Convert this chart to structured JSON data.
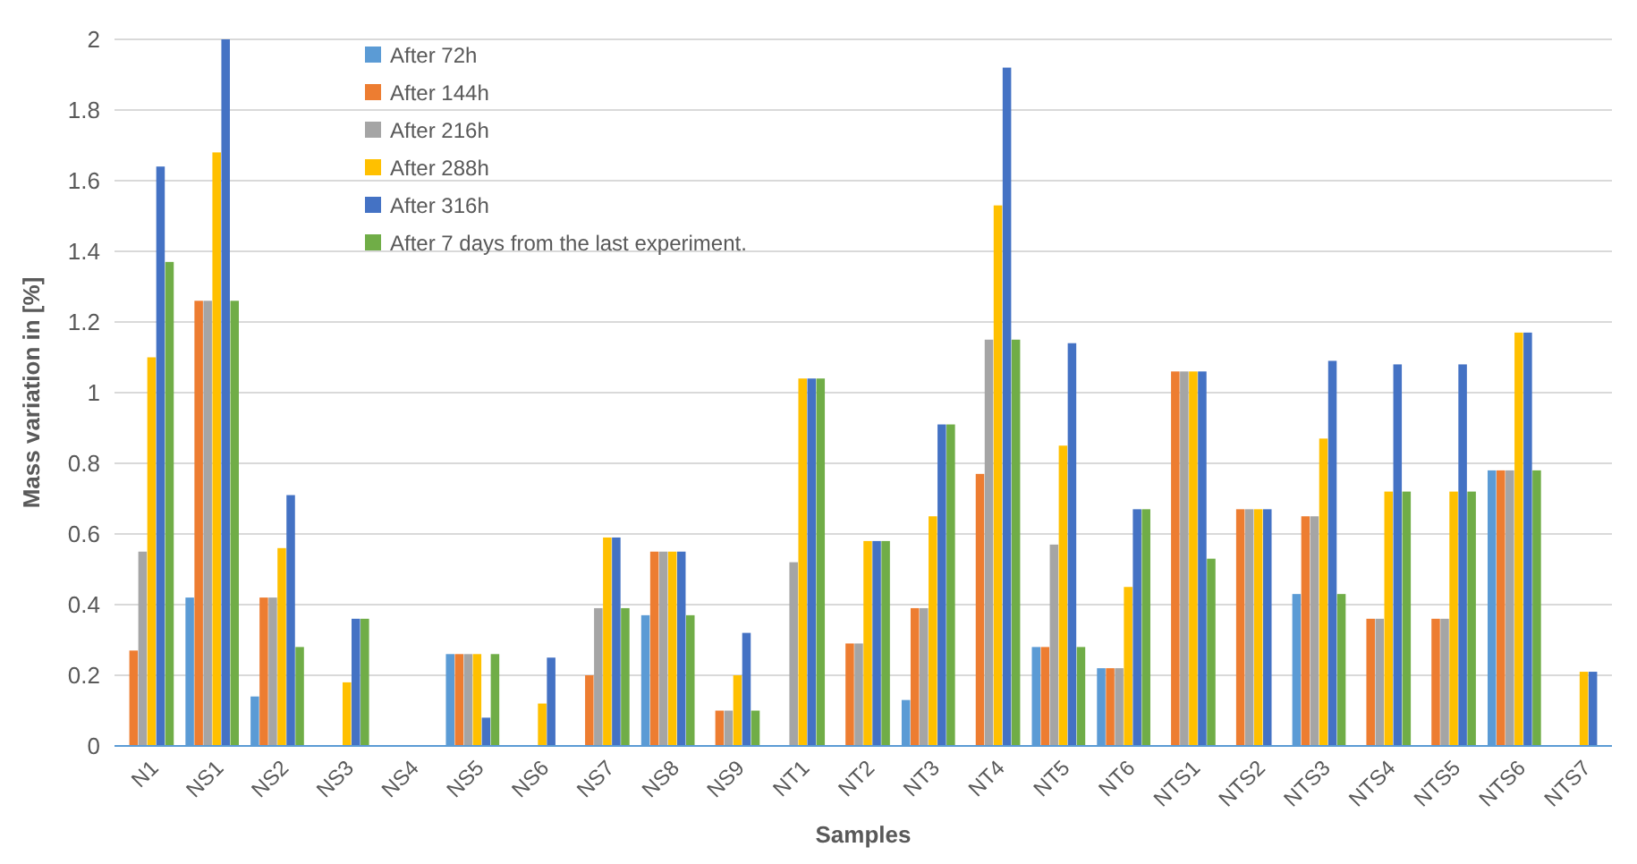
{
  "chart_data": {
    "type": "bar",
    "xlabel": "Samples",
    "ylabel": "Mass variation in [%]",
    "categories": [
      "N1",
      "NS1",
      "NS2",
      "NS3",
      "NS4",
      "NS5",
      "NS6",
      "NS7",
      "NS8",
      "NS9",
      "NT1",
      "NT2",
      "NT3",
      "NT4",
      "NT5",
      "NT6",
      "NTS1",
      "NTS2",
      "NTS3",
      "NTS4",
      "NTS5",
      "NTS6",
      "NTS7"
    ],
    "series": [
      {
        "name": "After 72h",
        "color": "#5b9bd5",
        "values": [
          0,
          0.42,
          0.14,
          0,
          0,
          0.26,
          0,
          0,
          0.37,
          0,
          0,
          0,
          0.13,
          0,
          0.28,
          0.22,
          0,
          0,
          0.43,
          0,
          0,
          0.78,
          0
        ]
      },
      {
        "name": "After 144h",
        "color": "#ed7d31",
        "values": [
          0.27,
          1.26,
          0.42,
          0,
          0,
          0.26,
          0,
          0.2,
          0.55,
          0.1,
          0,
          0.29,
          0.39,
          0.77,
          0.28,
          0.22,
          1.06,
          0.67,
          0.65,
          0.36,
          0.36,
          0.78,
          0
        ]
      },
      {
        "name": "After 216h",
        "color": "#a5a5a5",
        "values": [
          0.55,
          1.26,
          0.42,
          0,
          0,
          0.26,
          0,
          0.39,
          0.55,
          0.1,
          0.52,
          0.29,
          0.39,
          1.15,
          0.57,
          0.22,
          1.06,
          0.67,
          0.65,
          0.36,
          0.36,
          0.78,
          0
        ]
      },
      {
        "name": "After 288h",
        "color": "#ffc000",
        "values": [
          1.1,
          1.68,
          0.56,
          0.18,
          0,
          0.26,
          0.12,
          0.59,
          0.55,
          0.2,
          1.04,
          0.58,
          0.65,
          1.53,
          0.85,
          0.45,
          1.06,
          0.67,
          0.87,
          0.72,
          0.72,
          1.17,
          0.21
        ]
      },
      {
        "name": "After 316h",
        "color": "#4472c4",
        "values": [
          1.64,
          2,
          0.71,
          0.36,
          0,
          0.08,
          0.25,
          0.59,
          0.55,
          0.32,
          1.04,
          0.58,
          0.91,
          1.92,
          1.14,
          0.67,
          1.06,
          0.67,
          1.09,
          1.08,
          1.08,
          1.17,
          0.21
        ]
      },
      {
        "name": "After 7 days from the last experiment.",
        "color": "#70ad47",
        "values": [
          1.37,
          1.26,
          0.28,
          0.36,
          0,
          0.26,
          0,
          0.39,
          0.37,
          0.1,
          1.04,
          0.58,
          0.91,
          1.15,
          0.28,
          0.67,
          0.53,
          0,
          0.43,
          0.72,
          0.72,
          0.78,
          0
        ]
      }
    ],
    "ylim": [
      0,
      2
    ],
    "yticks": [
      0,
      0.2,
      0.4,
      0.6,
      0.8,
      1,
      1.2,
      1.4,
      1.6,
      1.8,
      2
    ],
    "grid": "y",
    "legend": "top"
  }
}
